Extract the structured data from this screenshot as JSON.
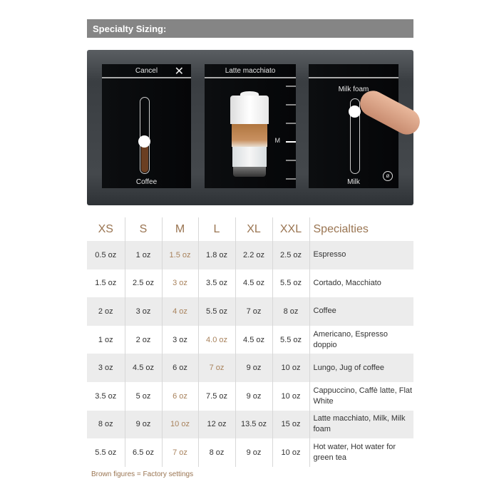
{
  "title": "Specialty Sizing:",
  "screen": {
    "left": {
      "header": "Cancel",
      "close_icon": "x-icon",
      "label": "Coffee",
      "level": 0.25
    },
    "middle": {
      "header": "Latte macchiato",
      "size_marker": "M"
    },
    "right": {
      "top_label": "Milk foam",
      "bottom_label": "Milk",
      "level": 0.85,
      "icon": "bean-icon"
    }
  },
  "colors": {
    "factory": "#a8825c",
    "header": "#9a7552"
  },
  "table": {
    "headers": [
      "XS",
      "S",
      "M",
      "L",
      "XL",
      "XXL",
      "Specialties"
    ],
    "rows": [
      {
        "cells": [
          "0.5 oz",
          "1 oz",
          "1.5 oz",
          "1.8 oz",
          "2.2 oz",
          "2.5 oz"
        ],
        "factory": 2,
        "specialty": "Espresso"
      },
      {
        "cells": [
          "1.5 oz",
          "2.5 oz",
          "3 oz",
          "3.5 oz",
          "4.5 oz",
          "5.5 oz"
        ],
        "factory": 2,
        "specialty": "Cortado, Macchiato"
      },
      {
        "cells": [
          "2 oz",
          "3 oz",
          "4 oz",
          "5.5 oz",
          "7 oz",
          "8 oz"
        ],
        "factory": 2,
        "specialty": "Coffee"
      },
      {
        "cells": [
          "1 oz",
          "2 oz",
          "3 oz",
          "4.0 oz",
          "4.5 oz",
          "5.5 oz"
        ],
        "factory": 3,
        "specialty": "Americano, Espresso doppio"
      },
      {
        "cells": [
          "3 oz",
          "4.5 oz",
          "6 oz",
          "7 oz",
          "9 oz",
          "10 oz"
        ],
        "factory": 3,
        "specialty": "Lungo, Jug of coffee"
      },
      {
        "cells": [
          "3.5 oz",
          "5 oz",
          "6 oz",
          "7.5 oz",
          "9 oz",
          "10 oz"
        ],
        "factory": 2,
        "specialty": "Cappuccino, Caffè latte, Flat White"
      },
      {
        "cells": [
          "8 oz",
          "9 oz",
          "10 oz",
          "12 oz",
          "13.5 oz",
          "15 oz"
        ],
        "factory": 2,
        "specialty": "Latte macchiato, Milk, Milk foam"
      },
      {
        "cells": [
          "5.5 oz",
          "6.5 oz",
          "7 oz",
          "8 oz",
          "9 oz",
          "10 oz"
        ],
        "factory": 2,
        "specialty": "Hot water, Hot water for green tea"
      }
    ]
  },
  "footnote": "Brown figures = Factory settings"
}
